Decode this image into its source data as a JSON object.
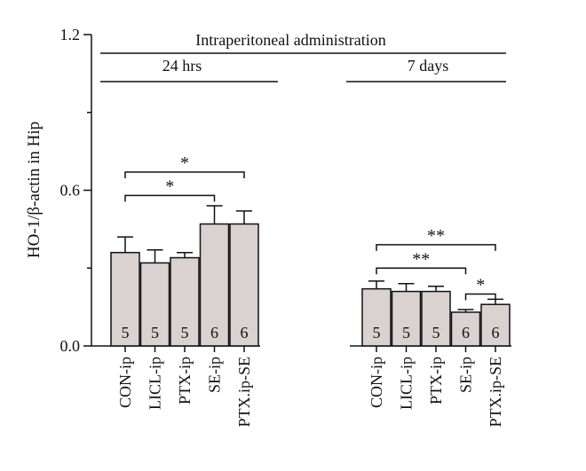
{
  "chart_data": {
    "type": "bar",
    "title": "Intraperitoneal administration",
    "ylabel": "HO-1/β-actin in Hip",
    "ylim": [
      0,
      1.2
    ],
    "yticks": [
      "0.0",
      "0.6",
      "1.2"
    ],
    "bar_color": "#d9d2d0",
    "groups": [
      {
        "label": "24 hrs",
        "categories": [
          "CON-ip",
          "LICL-ip",
          "PTX-ip",
          "SE-ip",
          "PTX.ip-SE"
        ],
        "values": [
          0.36,
          0.32,
          0.34,
          0.47,
          0.47
        ],
        "errors": [
          0.06,
          0.05,
          0.02,
          0.07,
          0.05
        ],
        "n": [
          "5",
          "5",
          "5",
          "6",
          "6"
        ]
      },
      {
        "label": "7 days",
        "categories": [
          "CON-ip",
          "LICL-ip",
          "PTX-ip",
          "SE-ip",
          "PTX.ip-SE"
        ],
        "values": [
          0.22,
          0.21,
          0.21,
          0.13,
          0.16
        ],
        "errors": [
          0.03,
          0.03,
          0.02,
          0.01,
          0.02
        ],
        "n": [
          "5",
          "5",
          "5",
          "6",
          "6"
        ]
      }
    ],
    "significance": [
      {
        "group": 0,
        "from": 0,
        "to": 3,
        "label": "*",
        "level": 0.58
      },
      {
        "group": 0,
        "from": 0,
        "to": 4,
        "label": "*",
        "level": 0.67
      },
      {
        "group": 1,
        "from": 0,
        "to": 3,
        "label": "**",
        "level": 0.3
      },
      {
        "group": 1,
        "from": 0,
        "to": 4,
        "label": "**",
        "level": 0.39
      },
      {
        "group": 1,
        "from": 3,
        "to": 4,
        "label": "*",
        "level": 0.2
      }
    ]
  }
}
